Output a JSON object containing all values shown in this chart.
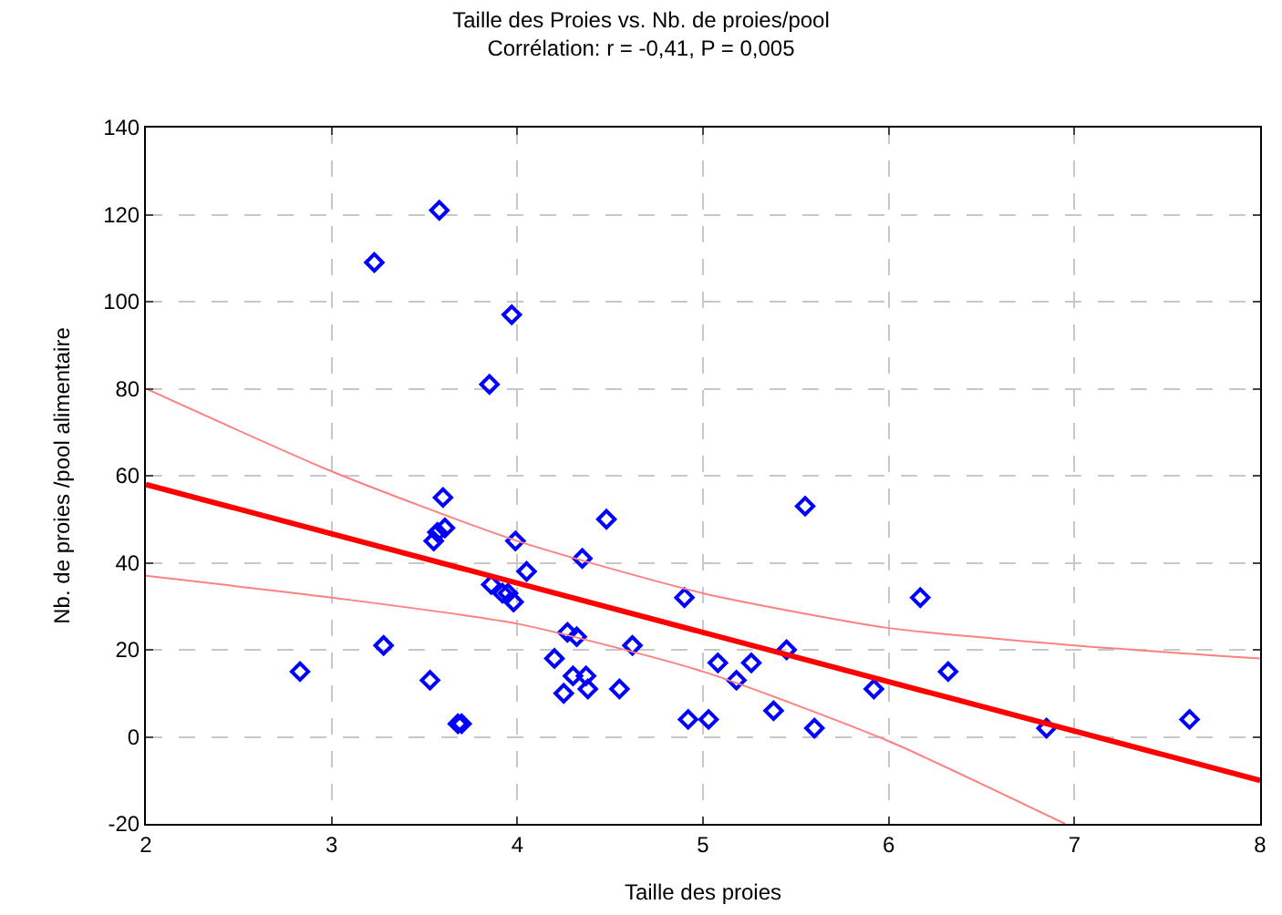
{
  "chart_data": {
    "type": "scatter",
    "title": "Taille des Proies vs. Nb. de proies/pool",
    "subtitle": "Corrélation: r = -0,41, P = 0,005",
    "xlabel": "Taille des proies",
    "ylabel": "Nb. de proies /pool alimentaire",
    "xlim": [
      2,
      8
    ],
    "xticks": [
      2,
      3,
      4,
      5,
      6,
      7,
      8
    ],
    "ylim": [
      -20,
      140
    ],
    "yticks": [
      -20,
      0,
      20,
      40,
      60,
      80,
      100,
      120,
      140
    ],
    "grid": true,
    "series": [
      {
        "marker": "diamond",
        "color": "#0000ff",
        "x": [
          2.83,
          3.23,
          3.28,
          3.53,
          3.55,
          3.57,
          3.58,
          3.6,
          3.61,
          3.68,
          3.7,
          3.85,
          3.86,
          3.92,
          3.95,
          3.97,
          3.98,
          3.99,
          4.05,
          4.2,
          4.25,
          4.27,
          4.3,
          4.32,
          4.35,
          4.37,
          4.38,
          4.48,
          4.55,
          4.62,
          4.9,
          4.92,
          5.03,
          5.08,
          5.18,
          5.26,
          5.38,
          5.45,
          5.55,
          5.6,
          5.92,
          6.17,
          6.32,
          6.85,
          7.62
        ],
        "values": [
          15,
          109,
          21,
          13,
          45,
          47,
          121,
          55,
          48,
          3,
          3,
          81,
          35,
          33,
          33,
          97,
          31,
          45,
          38,
          18,
          10,
          24,
          14,
          23,
          41,
          14,
          11,
          50,
          11,
          21,
          32,
          4,
          4,
          17,
          13,
          17,
          6,
          20,
          53,
          2,
          11,
          32,
          15,
          2,
          4
        ]
      },
      {
        "type": "line",
        "marker": "none",
        "color": "#ff0000",
        "x": [
          2,
          8
        ],
        "values": [
          58,
          -10
        ]
      },
      {
        "type": "line",
        "marker": "none",
        "color": "#ff8080",
        "x": [
          2,
          3,
          4,
          5,
          6,
          7,
          8
        ],
        "values": [
          80,
          61,
          45,
          33,
          25,
          21,
          18
        ]
      },
      {
        "type": "line",
        "marker": "none",
        "color": "#ff8080",
        "x": [
          2,
          3,
          4,
          5,
          6,
          6.95
        ],
        "values": [
          37,
          32,
          26,
          15,
          -1,
          -20
        ]
      }
    ]
  }
}
